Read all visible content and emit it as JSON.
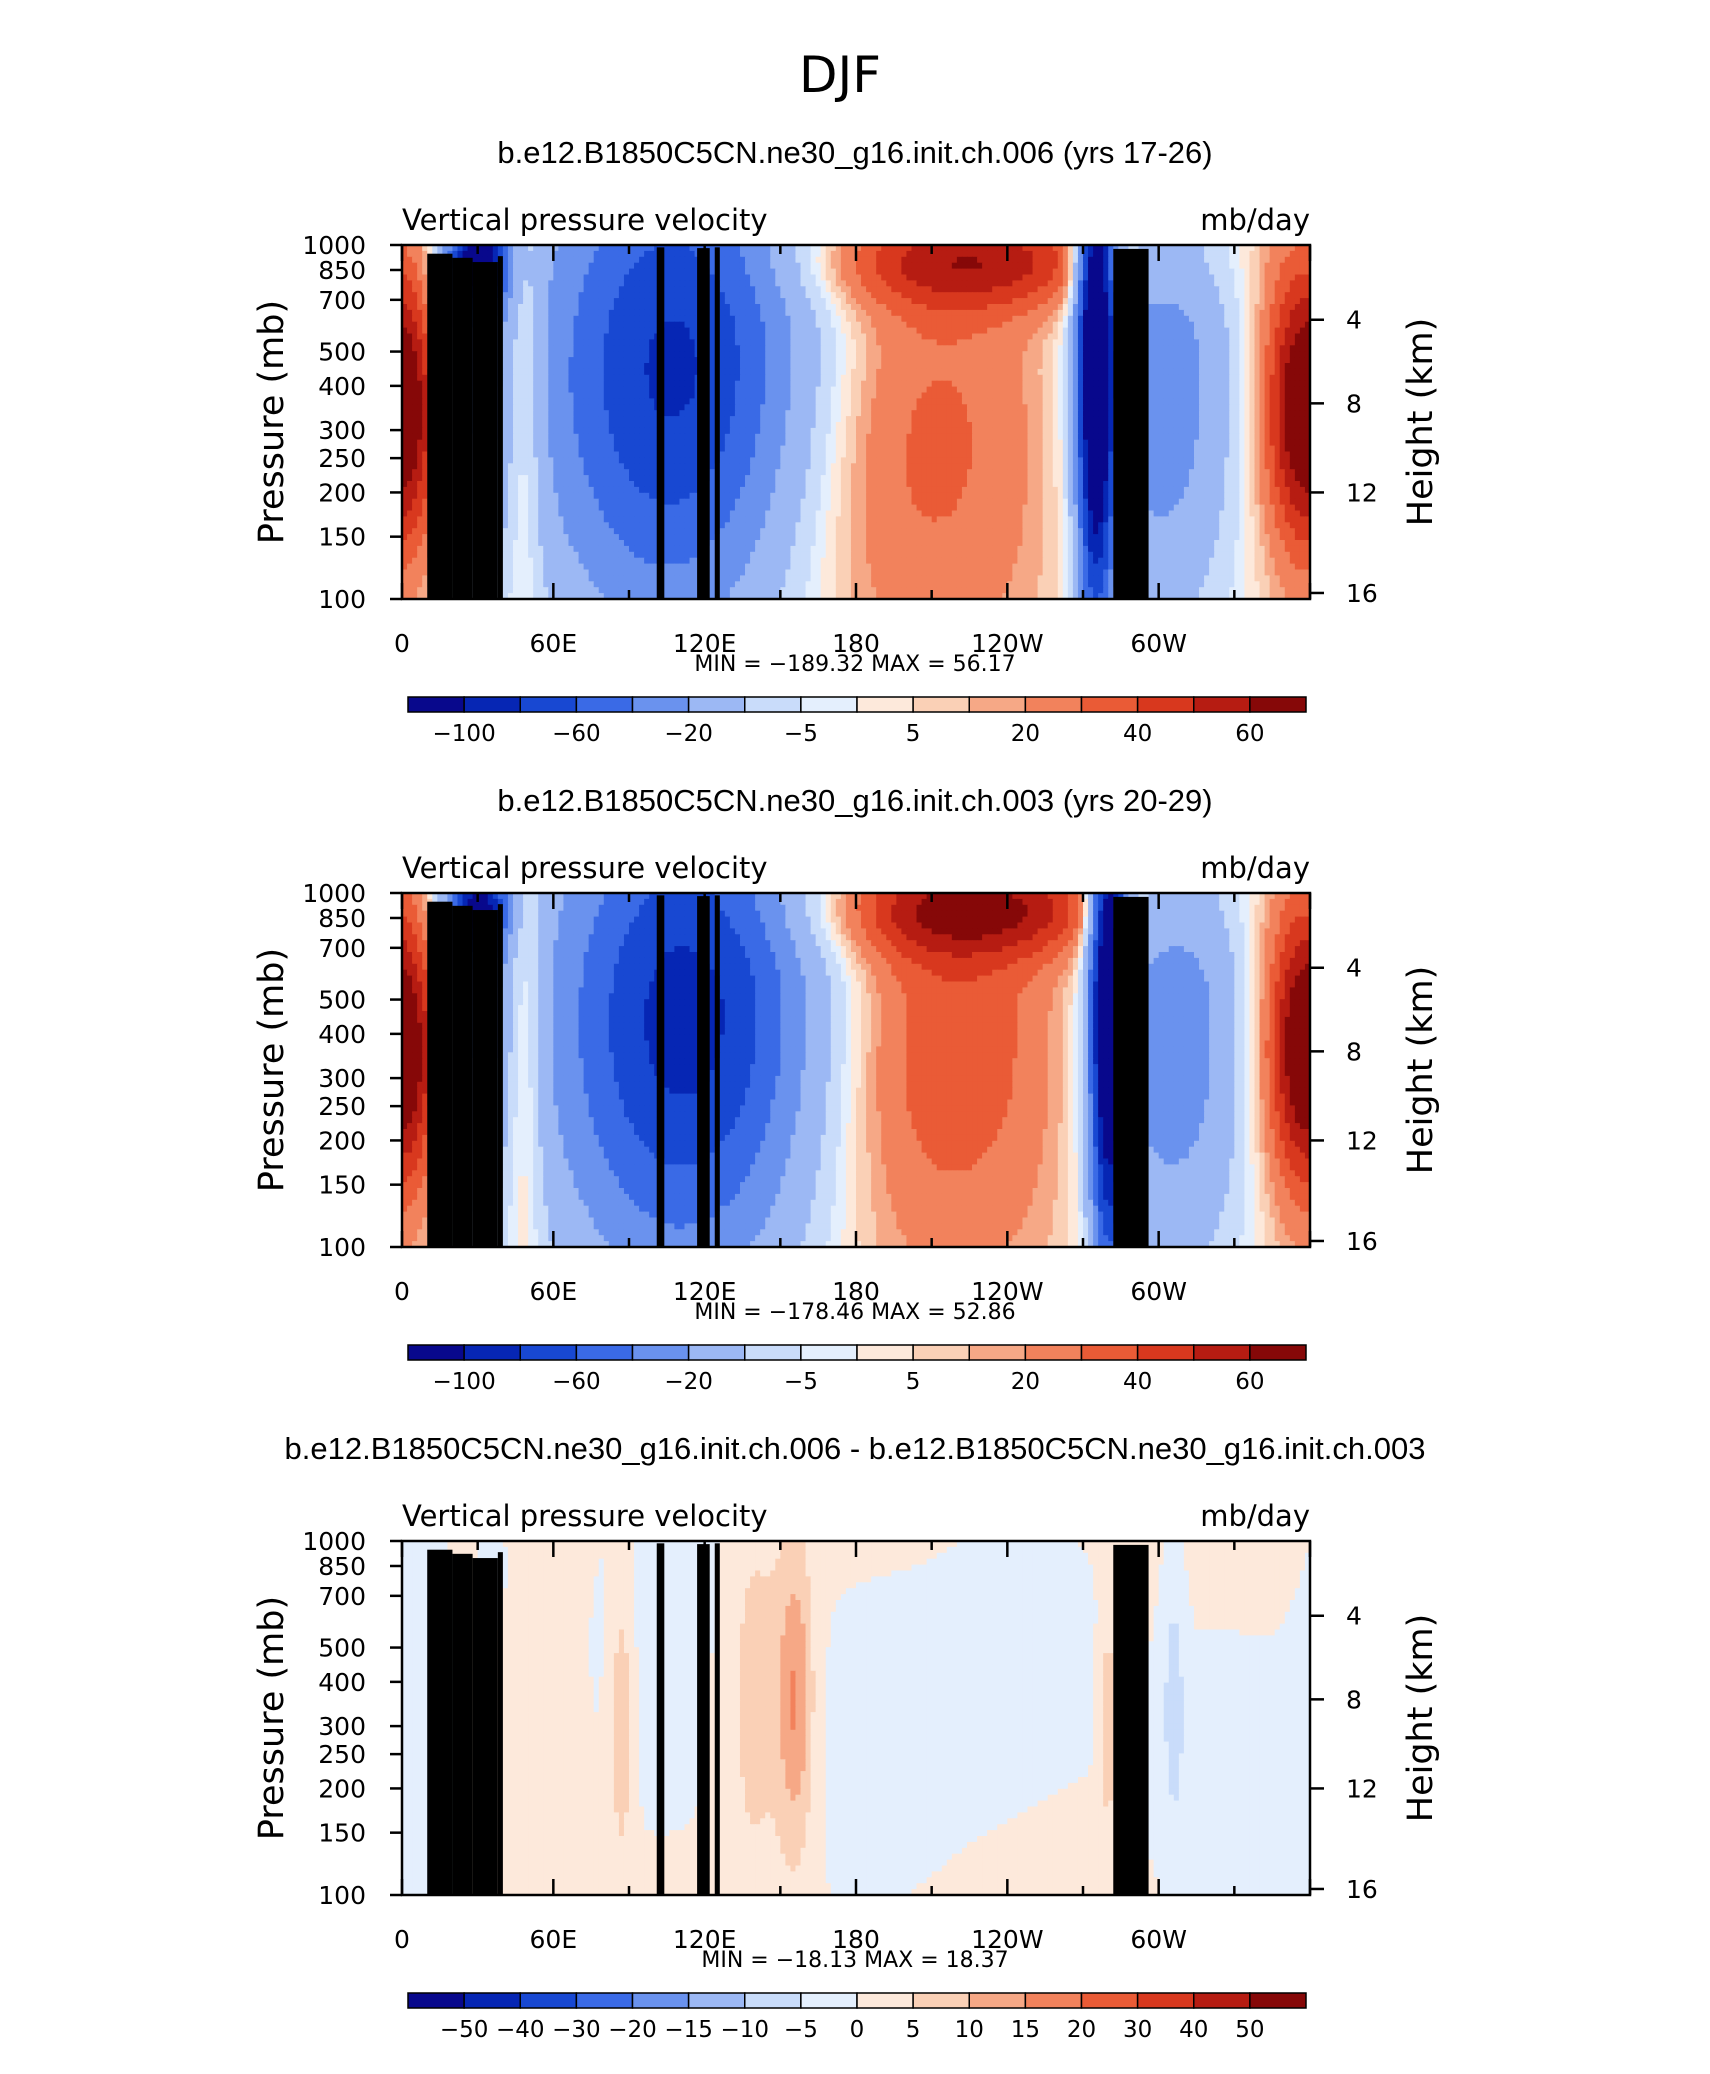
{
  "figure_title": "DJF",
  "panels": [
    {
      "title": "b.e12.B1850C5CN.ne30_g16.init.ch.006 (yrs 17-26)",
      "left_label": "Vertical pressure velocity",
      "right_label": "mb/day",
      "stats": "MIN = −189.32   MAX =   56.17"
    },
    {
      "title": "b.e12.B1850C5CN.ne30_g16.init.ch.003 (yrs 20-29)",
      "left_label": "Vertical pressure velocity",
      "right_label": "mb/day",
      "stats": "MIN = −178.46   MAX =   52.86"
    },
    {
      "title": "b.e12.B1850C5CN.ne30_g16.init.ch.006 - b.e12.B1850C5CN.ne30_g16.init.ch.003",
      "left_label": "Vertical pressure velocity",
      "right_label": "mb/day",
      "stats": "MIN = −18.13   MAX =   18.37"
    }
  ],
  "chart_data": [
    {
      "type": "heatmap",
      "subtype": "filled contour (longitude-pressure cross section)",
      "title": "b.e12.B1850C5CN.ne30_g16.init.ch.006 (yrs 17-26)",
      "variable": "Vertical pressure velocity",
      "units": "mb/day",
      "ylabel": "Pressure (mb)",
      "y2label": "Height (km)",
      "xlim": [
        0,
        360
      ],
      "ylim": [
        1000,
        100
      ],
      "y_scale": "log",
      "x_ticks": [
        "0",
        "60E",
        "120E",
        "180",
        "120W",
        "60W"
      ],
      "y_ticks": [
        "100",
        "150",
        "200",
        "250",
        "300",
        "400",
        "500",
        "700",
        "850",
        "1000"
      ],
      "y2_ticks": [
        "16",
        "12",
        "8",
        "4"
      ],
      "min": -189.32,
      "max": 56.17,
      "colorbar_labels": [
        "−100",
        "−60",
        "−20",
        "−5",
        "5",
        "20",
        "40",
        "60"
      ],
      "field": {
        "background": 1.0,
        "features": [
          {
            "lon": 0,
            "p": 350,
            "value": 35,
            "dlon": 12,
            "dlogp": 0.3
          },
          {
            "lon": 360,
            "p": 350,
            "value": 40,
            "dlon": 14,
            "dlogp": 0.3
          },
          {
            "lon": 30,
            "p": 500,
            "value": -40,
            "dlon": 14,
            "dlogp": 0.45
          },
          {
            "lon": 30,
            "p": 900,
            "value": -110,
            "dlon": 8,
            "dlogp": 0.09
          },
          {
            "lon": 48,
            "p": 400,
            "value": 35,
            "dlon": 6,
            "dlogp": 0.45
          },
          {
            "lon": 105,
            "p": 350,
            "value": -70,
            "dlon": 38,
            "dlogp": 0.55
          },
          {
            "lon": 115,
            "p": 600,
            "value": -40,
            "dlon": 40,
            "dlogp": 0.45
          },
          {
            "lon": 200,
            "p": 280,
            "value": 25,
            "dlon": 40,
            "dlogp": 0.45
          },
          {
            "lon": 230,
            "p": 900,
            "value": 40,
            "dlon": 50,
            "dlogp": 0.1
          },
          {
            "lon": 275,
            "p": 500,
            "value": -160,
            "dlon": 5,
            "dlogp": 0.55
          },
          {
            "lon": 300,
            "p": 400,
            "value": -55,
            "dlon": 22,
            "dlogp": 0.5
          }
        ]
      }
    },
    {
      "type": "heatmap",
      "subtype": "filled contour (longitude-pressure cross section)",
      "title": "b.e12.B1850C5CN.ne30_g16.init.ch.003 (yrs 20-29)",
      "variable": "Vertical pressure velocity",
      "units": "mb/day",
      "ylabel": "Pressure (mb)",
      "y2label": "Height (km)",
      "xlim": [
        0,
        360
      ],
      "ylim": [
        1000,
        100
      ],
      "y_scale": "log",
      "x_ticks": [
        "0",
        "60E",
        "120E",
        "180",
        "120W",
        "60W"
      ],
      "y_ticks": [
        "100",
        "150",
        "200",
        "250",
        "300",
        "400",
        "500",
        "700",
        "850",
        "1000"
      ],
      "y2_ticks": [
        "16",
        "12",
        "8",
        "4"
      ],
      "min": -178.46,
      "max": 52.86,
      "colorbar_labels": [
        "−100",
        "−60",
        "−20",
        "−5",
        "5",
        "20",
        "40",
        "60"
      ],
      "field": {
        "background": 1.0,
        "features": [
          {
            "lon": 0,
            "p": 350,
            "value": 35,
            "dlon": 12,
            "dlogp": 0.3
          },
          {
            "lon": 360,
            "p": 380,
            "value": 40,
            "dlon": 14,
            "dlogp": 0.3
          },
          {
            "lon": 30,
            "p": 500,
            "value": -40,
            "dlon": 14,
            "dlogp": 0.45
          },
          {
            "lon": 30,
            "p": 900,
            "value": -100,
            "dlon": 8,
            "dlogp": 0.09
          },
          {
            "lon": 48,
            "p": 400,
            "value": 35,
            "dlon": 6,
            "dlogp": 0.45
          },
          {
            "lon": 110,
            "p": 350,
            "value": -75,
            "dlon": 38,
            "dlogp": 0.55
          },
          {
            "lon": 120,
            "p": 600,
            "value": -40,
            "dlon": 40,
            "dlogp": 0.45
          },
          {
            "lon": 210,
            "p": 380,
            "value": 30,
            "dlon": 38,
            "dlogp": 0.45
          },
          {
            "lon": 230,
            "p": 900,
            "value": 40,
            "dlon": 50,
            "dlogp": 0.1
          },
          {
            "lon": 280,
            "p": 500,
            "value": -150,
            "dlon": 5,
            "dlogp": 0.55
          },
          {
            "lon": 305,
            "p": 400,
            "value": -55,
            "dlon": 22,
            "dlogp": 0.5
          }
        ]
      }
    },
    {
      "type": "heatmap",
      "subtype": "filled contour (longitude-pressure cross section)",
      "title": "b.e12.B1850C5CN.ne30_g16.init.ch.006 - b.e12.B1850C5CN.ne30_g16.init.ch.003",
      "variable": "Vertical pressure velocity",
      "units": "mb/day",
      "ylabel": "Pressure (mb)",
      "y2label": "Height (km)",
      "xlim": [
        0,
        360
      ],
      "ylim": [
        1000,
        100
      ],
      "y_scale": "log",
      "x_ticks": [
        "0",
        "60E",
        "120E",
        "180",
        "120W",
        "60W"
      ],
      "y_ticks": [
        "100",
        "150",
        "200",
        "250",
        "300",
        "400",
        "500",
        "700",
        "850",
        "1000"
      ],
      "y2_ticks": [
        "16",
        "12",
        "8",
        "4"
      ],
      "min": -18.13,
      "max": 18.37,
      "colorbar_labels": [
        "−50",
        "−40",
        "−30",
        "−20",
        "−15",
        "−10",
        "−5",
        "0",
        "5",
        "10",
        "15",
        "20",
        "30",
        "40",
        "50"
      ],
      "field": {
        "background": 1.5,
        "features": [
          {
            "lon": 10,
            "p": 300,
            "value": -3,
            "dlon": 12,
            "dlogp": 0.5
          },
          {
            "lon": 100,
            "p": 500,
            "value": -2.5,
            "dlon": 25,
            "dlogp": 0.5
          },
          {
            "lon": 180,
            "p": 250,
            "value": -2.5,
            "dlon": 30,
            "dlogp": 0.4
          },
          {
            "lon": 250,
            "p": 500,
            "value": -2,
            "dlon": 35,
            "dlogp": 0.5
          },
          {
            "lon": 330,
            "p": 200,
            "value": -3,
            "dlon": 25,
            "dlogp": 0.35
          },
          {
            "lon": 87,
            "p": 300,
            "value": 10,
            "dlon": 3,
            "dlogp": 0.25
          },
          {
            "lon": 156,
            "p": 350,
            "value": 15,
            "dlon": 5,
            "dlogp": 0.3
          },
          {
            "lon": 140,
            "p": 350,
            "value": 7,
            "dlon": 8,
            "dlogp": 0.4
          },
          {
            "lon": 280,
            "p": 300,
            "value": 10,
            "dlon": 2,
            "dlogp": 0.2
          },
          {
            "lon": 306,
            "p": 350,
            "value": -8,
            "dlon": 3,
            "dlogp": 0.25
          },
          {
            "lon": 36,
            "p": 850,
            "value": -6,
            "dlon": 3,
            "dlogp": 0.1
          },
          {
            "lon": 120,
            "p": 800,
            "value": -5,
            "dlon": 3,
            "dlogp": 0.1
          }
        ]
      }
    }
  ],
  "colors": {
    "colorbar_main": [
      "#08088c",
      "#0626b4",
      "#1848d2",
      "#3a6ae6",
      "#6a92ee",
      "#9cb8f4",
      "#c9dcfa",
      "#e4effd",
      "#fde9db",
      "#fad0b6",
      "#f6a886",
      "#f2825c",
      "#ea5b36",
      "#d8381e",
      "#b61c12",
      "#860808"
    ],
    "colorbar_diff": [
      "#08088c",
      "#0626b4",
      "#1848d2",
      "#3a6ae6",
      "#6a92ee",
      "#9cb8f4",
      "#c9dcfa",
      "#e4effd",
      "#fde9db",
      "#fad0b6",
      "#f6a886",
      "#f2825c",
      "#ea5b36",
      "#d8381e",
      "#b61c12",
      "#860808"
    ],
    "topography": "#000000"
  }
}
